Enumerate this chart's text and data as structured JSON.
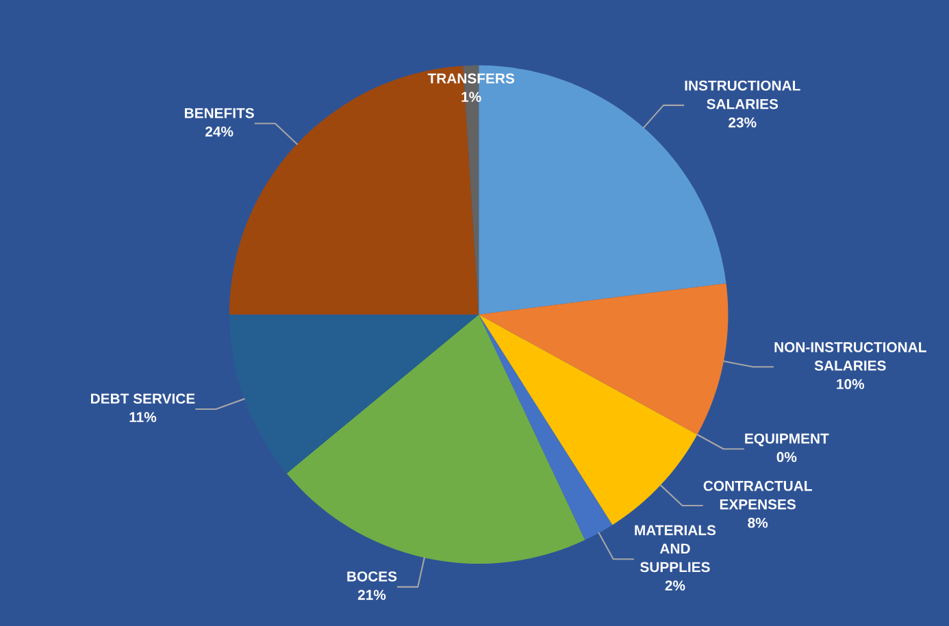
{
  "chart_data": {
    "type": "pie",
    "categories": [
      "INSTRUCTIONAL SALARIES",
      "NON-INSTRUCTIONAL SALARIES",
      "EQUIPMENT",
      "CONTRACTUAL EXPENSES",
      "MATERIALS AND SUPPLIES",
      "BOCES",
      "DEBT SERVICE",
      "BENEFITS",
      "TRANSFERS"
    ],
    "values": [
      23,
      10,
      0,
      8,
      2,
      21,
      11,
      24,
      1
    ],
    "value_labels": [
      "23%",
      "10%",
      "0%",
      "8%",
      "2%",
      "21%",
      "11%",
      "24%",
      "1%"
    ],
    "colors": [
      "#5b9bd5",
      "#ed7d31",
      "#a5a5a5",
      "#ffc000",
      "#4472c4",
      "#70ad47",
      "#255e91",
      "#9e480e",
      "#636363"
    ]
  }
}
